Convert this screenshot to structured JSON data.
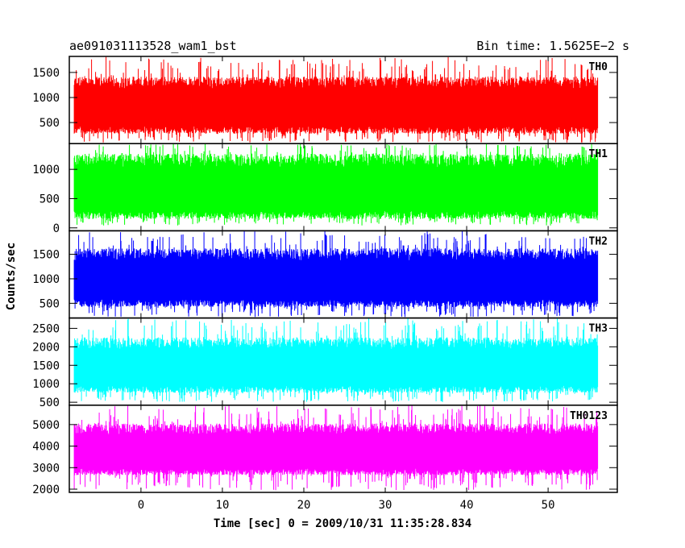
{
  "header": {
    "left_title": "ae091031113528_wam1_bst",
    "right_title": "Bin time: 1.5625E−2 s"
  },
  "axes": {
    "xlabel": "Time [sec] 0 = 2009/10/31 11:35:28.834",
    "ylabel": "Counts/sec"
  },
  "chart_data": {
    "type": "line",
    "xlim": [
      -8.8,
      58.5
    ],
    "x_ticks": [
      0,
      10,
      20,
      30,
      40,
      50
    ],
    "x_data_range": [
      -8.2,
      56.1
    ],
    "grid": false,
    "panels": [
      {
        "name": "TH0",
        "color": "#ff0000",
        "ylim": [
          80,
          1820
        ],
        "y_ticks": [
          500,
          1000,
          1500
        ],
        "baseline": 100,
        "typical_low": 350,
        "typical_high": 1300,
        "peak_values": [
          1820,
          1780,
          1800,
          1760,
          1810,
          1750,
          1790
        ],
        "floor_values": [
          100,
          110,
          120,
          105,
          115
        ]
      },
      {
        "name": "TH1",
        "color": "#00ff00",
        "ylim": [
          -50,
          1440
        ],
        "y_ticks": [
          0,
          500,
          1000
        ],
        "baseline": 40,
        "typical_low": 220,
        "typical_high": 1150,
        "peak_values": [
          1440,
          1420,
          1400,
          1430,
          1410,
          1380
        ],
        "floor_values": [
          30,
          40,
          50,
          35
        ]
      },
      {
        "name": "TH2",
        "color": "#0000ff",
        "ylim": [
          200,
          1980
        ],
        "y_ticks": [
          500,
          1000,
          1500
        ],
        "baseline": 220,
        "typical_low": 500,
        "typical_high": 1500,
        "peak_values": [
          1980,
          1960,
          1940,
          1970,
          1950,
          1930
        ],
        "floor_values": [
          220,
          240,
          250,
          230
        ]
      },
      {
        "name": "TH3",
        "color": "#00ffff",
        "ylim": [
          420,
          2780
        ],
        "y_ticks": [
          500,
          1000,
          1500,
          2000,
          2500
        ],
        "baseline": 500,
        "typical_low": 850,
        "typical_high": 2100,
        "peak_values": [
          2780,
          2750,
          2760,
          2720,
          2770
        ],
        "floor_values": [
          460,
          480,
          500,
          470
        ]
      },
      {
        "name": "TH0123",
        "color": "#ff00ff",
        "ylim": [
          1850,
          5900
        ],
        "y_ticks": [
          2000,
          3000,
          4000,
          5000
        ],
        "baseline": 1950,
        "typical_low": 2800,
        "typical_high": 4800,
        "peak_values": [
          5900,
          5800,
          5850,
          5750,
          5880
        ],
        "floor_values": [
          1900,
          1950,
          2000,
          1920
        ]
      }
    ]
  }
}
